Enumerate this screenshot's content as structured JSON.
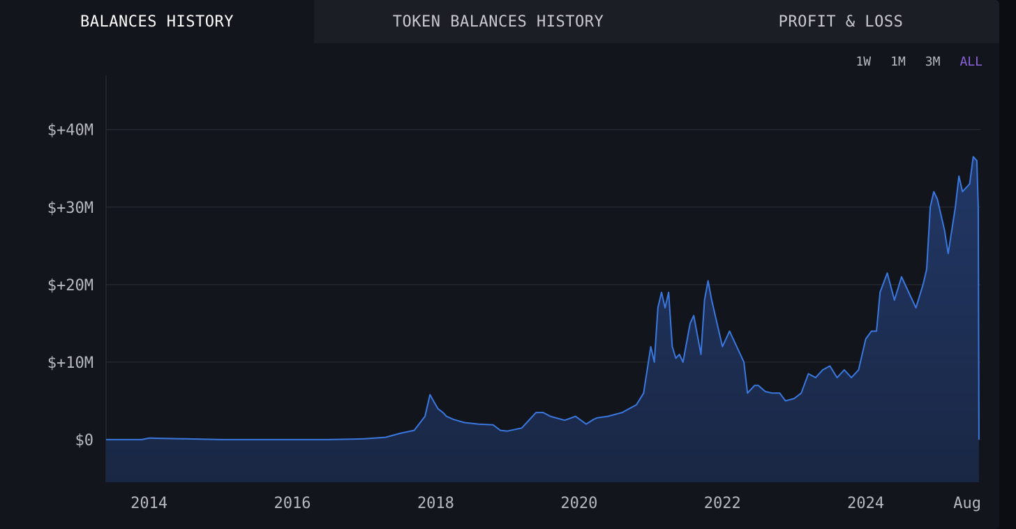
{
  "tabs": [
    {
      "label": "BALANCES HISTORY",
      "active": true
    },
    {
      "label": "TOKEN BALANCES HISTORY",
      "active": false
    },
    {
      "label": "PROFIT & LOSS",
      "active": false
    }
  ],
  "ranges": [
    {
      "label": "1W",
      "active": false
    },
    {
      "label": "1M",
      "active": false
    },
    {
      "label": "3M",
      "active": false
    },
    {
      "label": "ALL",
      "active": true
    }
  ],
  "colors": {
    "background": "#13151c",
    "tab_inactive": "#1c1e25",
    "line": "#3a78e0",
    "fill": "#1a2846",
    "accent": "#8d63d9",
    "grid": "#2e3139"
  },
  "chart_data": {
    "type": "area",
    "title": "",
    "xlabel": "",
    "ylabel": "",
    "ylim": [
      -5500000,
      47000000
    ],
    "xlim": [
      2013.4,
      2025.6
    ],
    "grid": true,
    "y_ticks": [
      {
        "value": 0,
        "label": "$0"
      },
      {
        "value": 10000000,
        "label": "$+10M"
      },
      {
        "value": 20000000,
        "label": "$+20M"
      },
      {
        "value": 30000000,
        "label": "$+30M"
      },
      {
        "value": 40000000,
        "label": "$+40M"
      }
    ],
    "x_ticks": [
      {
        "value": 2014,
        "label": "2014"
      },
      {
        "value": 2016,
        "label": "2016"
      },
      {
        "value": 2018,
        "label": "2018"
      },
      {
        "value": 2020,
        "label": "2020"
      },
      {
        "value": 2022,
        "label": "2022"
      },
      {
        "value": 2024,
        "label": "2024"
      },
      {
        "value": 2025.58,
        "label": "Aug"
      }
    ],
    "series": [
      {
        "x": [
          2013.4,
          2013.9,
          2014.0,
          2014.5,
          2015.0,
          2015.5,
          2016.0,
          2016.5,
          2017.0,
          2017.3,
          2017.5,
          2017.7,
          2017.85,
          2017.92,
          2017.98,
          2018.03,
          2018.1,
          2018.15,
          2018.25,
          2018.4,
          2018.6,
          2018.8,
          2018.9,
          2019.0,
          2019.2,
          2019.4,
          2019.5,
          2019.6,
          2019.8,
          2019.95,
          2020.1,
          2020.2,
          2020.25,
          2020.4,
          2020.6,
          2020.8,
          2020.9,
          2021.0,
          2021.05,
          2021.1,
          2021.15,
          2021.2,
          2021.25,
          2021.3,
          2021.35,
          2021.4,
          2021.45,
          2021.55,
          2021.6,
          2021.7,
          2021.75,
          2021.8,
          2021.85,
          2021.9,
          2022.0,
          2022.1,
          2022.2,
          2022.3,
          2022.35,
          2022.45,
          2022.5,
          2022.6,
          2022.7,
          2022.8,
          2022.88,
          2023.0,
          2023.1,
          2023.2,
          2023.3,
          2023.4,
          2023.5,
          2023.6,
          2023.7,
          2023.8,
          2023.9,
          2024.0,
          2024.08,
          2024.15,
          2024.2,
          2024.3,
          2024.4,
          2024.5,
          2024.6,
          2024.7,
          2024.8,
          2024.85,
          2024.9,
          2024.95,
          2025.0,
          2025.1,
          2025.15,
          2025.25,
          2025.3,
          2025.35,
          2025.45,
          2025.5,
          2025.55,
          2025.57,
          2025.58
        ],
        "y": [
          0,
          0,
          200000,
          100000,
          0,
          0,
          0,
          0,
          100000,
          300000,
          800000,
          1200000,
          3000000,
          5800000,
          4800000,
          4000000,
          3500000,
          3000000,
          2600000,
          2200000,
          2000000,
          1900000,
          1200000,
          1100000,
          1500000,
          3500000,
          3500000,
          3000000,
          2500000,
          3000000,
          2000000,
          2600000,
          2800000,
          3000000,
          3500000,
          4500000,
          6000000,
          12000000,
          10000000,
          17000000,
          19000000,
          17000000,
          19000000,
          12000000,
          10500000,
          11000000,
          10000000,
          15000000,
          16000000,
          11000000,
          18000000,
          20500000,
          18000000,
          16000000,
          12000000,
          14000000,
          12000000,
          10000000,
          6000000,
          7000000,
          7000000,
          6200000,
          6000000,
          6000000,
          5000000,
          5300000,
          6000000,
          8500000,
          8000000,
          9000000,
          9500000,
          8000000,
          9000000,
          8000000,
          9000000,
          13000000,
          14000000,
          14000000,
          19000000,
          21500000,
          18000000,
          21000000,
          19000000,
          17000000,
          20000000,
          22000000,
          30000000,
          32000000,
          31000000,
          27000000,
          24000000,
          30000000,
          34000000,
          32000000,
          33000000,
          36500000,
          36000000,
          30000000,
          0
        ]
      }
    ]
  }
}
